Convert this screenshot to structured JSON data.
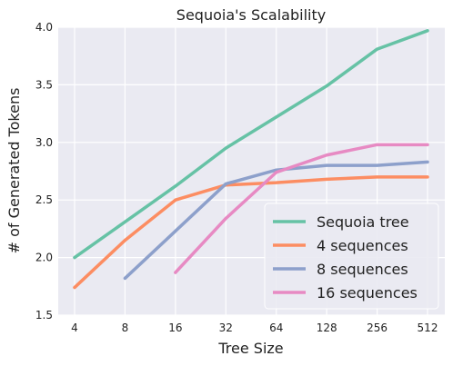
{
  "chart_data": {
    "type": "line",
    "title": "Sequoia's Scalability",
    "xlabel": "Tree Size",
    "ylabel": "# of Generated Tokens",
    "categories": [
      "4",
      "8",
      "16",
      "32",
      "64",
      "128",
      "256",
      "512"
    ],
    "x_scale": "log2",
    "ylim": [
      1.5,
      4.0
    ],
    "yticks": [
      1.5,
      2.0,
      2.5,
      3.0,
      3.5,
      4.0
    ],
    "ytick_labels": [
      "1.5",
      "2.0",
      "2.5",
      "3.0",
      "3.5",
      "4.0"
    ],
    "grid": true,
    "legend_position": "bottom-right",
    "series": [
      {
        "name": "Sequoia tree",
        "color": "#66c2a5",
        "values": [
          2.0,
          2.31,
          2.62,
          2.95,
          3.22,
          3.49,
          3.81,
          3.97
        ]
      },
      {
        "name": "4 sequences",
        "color": "#fc8d62",
        "values": [
          1.74,
          2.15,
          2.5,
          2.63,
          2.65,
          2.68,
          2.7,
          2.7
        ]
      },
      {
        "name": "8 sequences",
        "color": "#8da0cb",
        "values": [
          null,
          1.82,
          2.23,
          2.64,
          2.76,
          2.8,
          2.8,
          2.83
        ]
      },
      {
        "name": "16 sequences",
        "color": "#e78ac3",
        "values": [
          null,
          null,
          1.87,
          2.34,
          2.74,
          2.89,
          2.98,
          2.98
        ]
      }
    ]
  }
}
